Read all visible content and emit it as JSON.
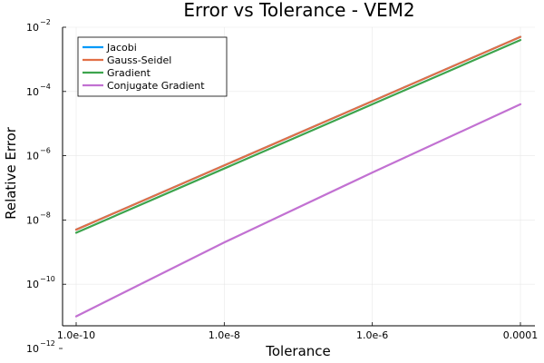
{
  "chart_data": {
    "type": "line",
    "title": "Error vs Tolerance - VEM2",
    "xlabel": "Tolerance",
    "ylabel": "Relative Error",
    "xscale": "log",
    "yscale": "log",
    "xlim": [
      1e-10,
      0.0001
    ],
    "ylim": [
      1e-12,
      0.01
    ],
    "x_ticks": [
      {
        "value": 1e-10,
        "label": "1.0e-10"
      },
      {
        "value": 1e-08,
        "label": "1.0e-8"
      },
      {
        "value": 1e-06,
        "label": "1.0e-6"
      },
      {
        "value": 0.0001,
        "label": "0.0001"
      }
    ],
    "y_ticks": [
      {
        "value": 0.01,
        "base": "10",
        "exp": "−2"
      },
      {
        "value": 0.0001,
        "base": "10",
        "exp": "−4"
      },
      {
        "value": 1e-06,
        "base": "10",
        "exp": "−6"
      },
      {
        "value": 1e-08,
        "base": "10",
        "exp": "−8"
      },
      {
        "value": 1e-10,
        "base": "10",
        "exp": "−10"
      },
      {
        "value": 1e-12,
        "base": "10",
        "exp": "−12"
      }
    ],
    "grid": true,
    "legend_position": "top-left",
    "series": [
      {
        "name": "Jacobi",
        "color": "#009af9",
        "x": [
          1e-10,
          1e-08,
          1e-06,
          0.0001
        ],
        "y": [
          5e-09,
          5e-07,
          5e-05,
          0.005
        ]
      },
      {
        "name": "Gauss-Seidel",
        "color": "#e26f46",
        "x": [
          1e-10,
          1e-08,
          1e-06,
          0.0001
        ],
        "y": [
          5e-09,
          5e-07,
          5e-05,
          0.005
        ]
      },
      {
        "name": "Gradient",
        "color": "#3da44d",
        "x": [
          1e-10,
          1e-08,
          1e-06,
          0.0001
        ],
        "y": [
          4e-09,
          4e-07,
          4e-05,
          0.004
        ]
      },
      {
        "name": "Conjugate Gradient",
        "color": "#c271d2",
        "x": [
          1e-10,
          1e-08,
          1e-06,
          0.0001
        ],
        "y": [
          1e-11,
          2e-09,
          3e-07,
          4e-05
        ]
      }
    ]
  }
}
